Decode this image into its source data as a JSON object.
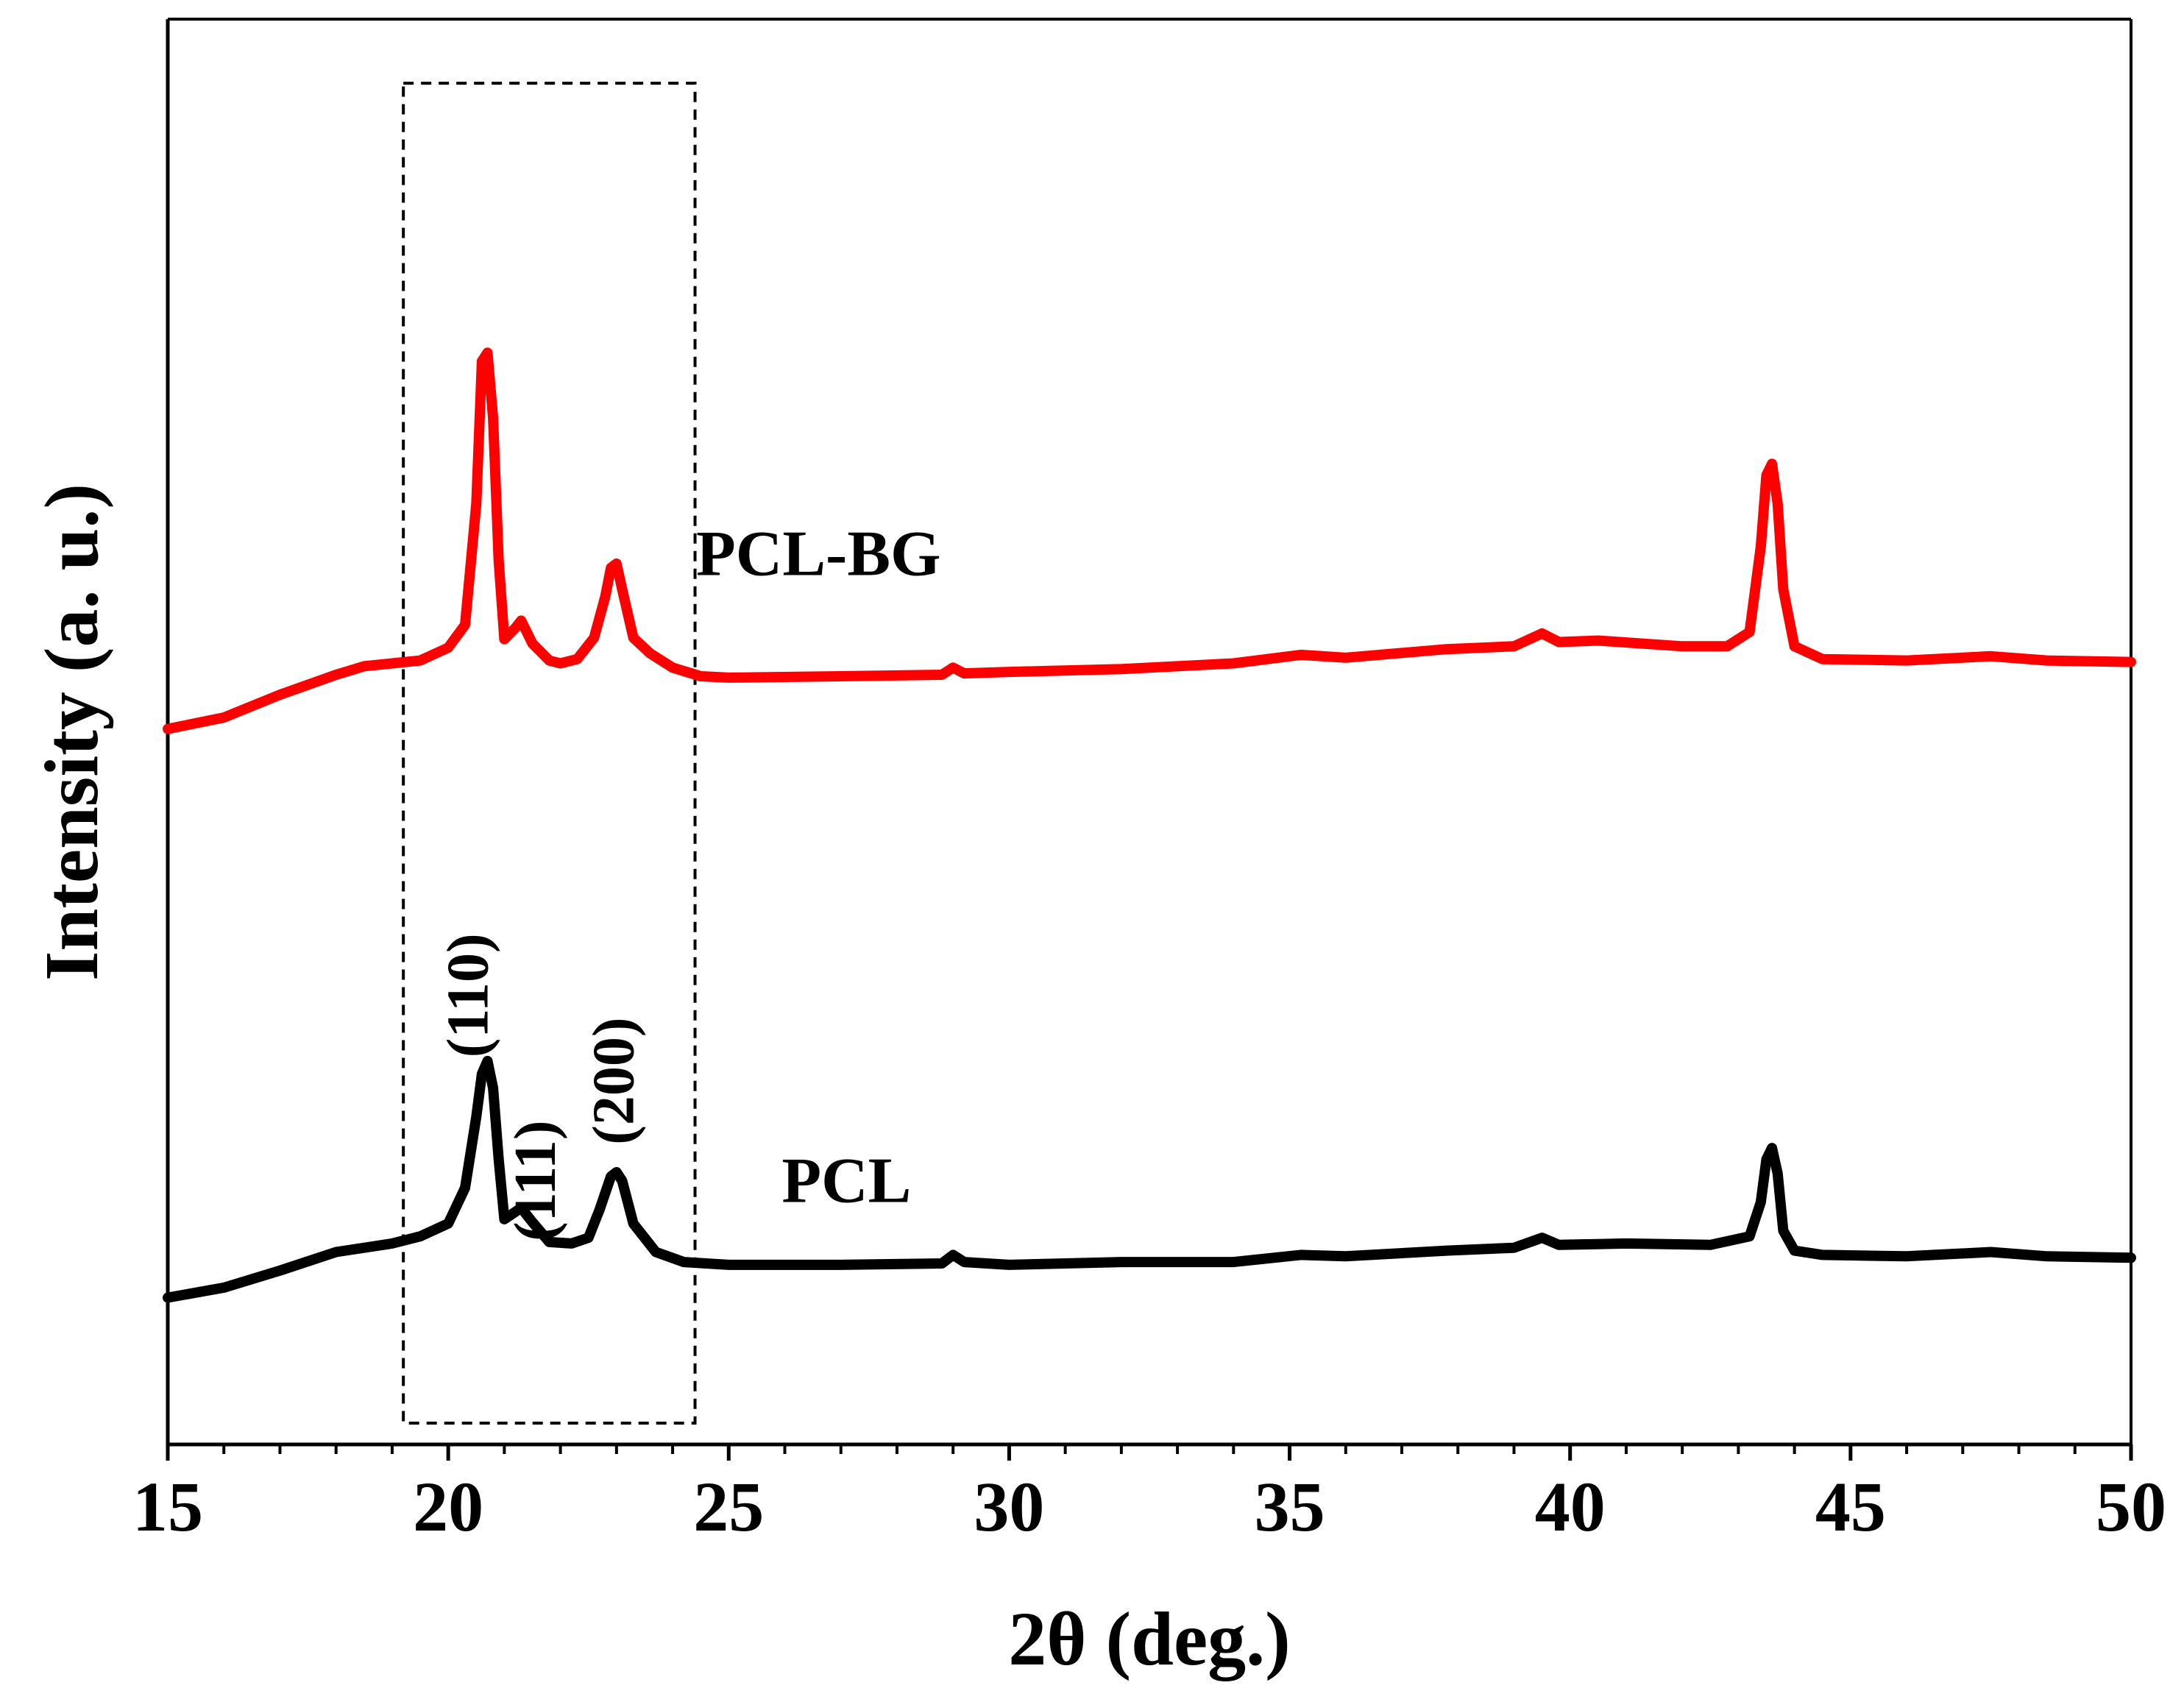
{
  "chart_data": {
    "type": "line",
    "title": "",
    "xlabel": "2θ (deg.)",
    "ylabel": "Intensity (a. u.)",
    "xlim": [
      15,
      50
    ],
    "ylim": [
      0,
      100
    ],
    "x_ticks": [
      15,
      20,
      25,
      30,
      35,
      40,
      45,
      50
    ],
    "x_tick_labels": [
      "15",
      "20",
      "25",
      "30",
      "35",
      "40",
      "45",
      "50"
    ],
    "x_minor_step": 1,
    "y_ticks_shown": false,
    "grid": false,
    "series": [
      {
        "name": "PCL-BG",
        "label": "PCL-BG",
        "color": "#ff0000",
        "points": [
          [
            15.0,
            50.2
          ],
          [
            16.0,
            51.0
          ],
          [
            17.0,
            52.6
          ],
          [
            18.0,
            54.0
          ],
          [
            18.5,
            54.6
          ],
          [
            19.0,
            54.8
          ],
          [
            19.5,
            55.0
          ],
          [
            20.0,
            55.9
          ],
          [
            20.3,
            57.5
          ],
          [
            20.5,
            66.0
          ],
          [
            20.6,
            76.0
          ],
          [
            20.7,
            76.6
          ],
          [
            20.8,
            72.0
          ],
          [
            20.9,
            62.0
          ],
          [
            21.0,
            56.5
          ],
          [
            21.2,
            57.3
          ],
          [
            21.3,
            57.8
          ],
          [
            21.5,
            56.2
          ],
          [
            21.8,
            55.0
          ],
          [
            22.0,
            54.8
          ],
          [
            22.3,
            55.1
          ],
          [
            22.6,
            56.6
          ],
          [
            22.8,
            59.5
          ],
          [
            22.9,
            61.5
          ],
          [
            23.0,
            61.8
          ],
          [
            23.1,
            60.0
          ],
          [
            23.3,
            56.6
          ],
          [
            23.6,
            55.5
          ],
          [
            24.0,
            54.5
          ],
          [
            24.5,
            53.9
          ],
          [
            25.0,
            53.8
          ],
          [
            27.0,
            53.9
          ],
          [
            28.8,
            54.0
          ],
          [
            29.0,
            54.5
          ],
          [
            29.2,
            54.1
          ],
          [
            30.0,
            54.2
          ],
          [
            32.0,
            54.4
          ],
          [
            34.0,
            54.8
          ],
          [
            35.2,
            55.4
          ],
          [
            36.0,
            55.2
          ],
          [
            37.8,
            55.8
          ],
          [
            39.0,
            56.0
          ],
          [
            39.5,
            56.9
          ],
          [
            39.8,
            56.3
          ],
          [
            40.5,
            56.4
          ],
          [
            42.0,
            56.0
          ],
          [
            42.8,
            56.0
          ],
          [
            43.2,
            57.0
          ],
          [
            43.4,
            63.0
          ],
          [
            43.5,
            68.0
          ],
          [
            43.6,
            68.8
          ],
          [
            43.7,
            66.0
          ],
          [
            43.8,
            60.0
          ],
          [
            44.0,
            56.0
          ],
          [
            44.5,
            55.1
          ],
          [
            46.0,
            55.0
          ],
          [
            47.5,
            55.3
          ],
          [
            48.5,
            55.0
          ],
          [
            50.0,
            54.9
          ]
        ]
      },
      {
        "name": "PCL",
        "label": "PCL",
        "color": "#000000",
        "points": [
          [
            15.0,
            10.3
          ],
          [
            16.0,
            11.0
          ],
          [
            17.0,
            12.2
          ],
          [
            18.0,
            13.5
          ],
          [
            19.0,
            14.1
          ],
          [
            19.5,
            14.6
          ],
          [
            20.0,
            15.5
          ],
          [
            20.3,
            18.0
          ],
          [
            20.5,
            23.0
          ],
          [
            20.6,
            26.0
          ],
          [
            20.7,
            26.9
          ],
          [
            20.8,
            25.0
          ],
          [
            20.9,
            20.0
          ],
          [
            21.0,
            15.8
          ],
          [
            21.3,
            16.6
          ],
          [
            21.5,
            15.6
          ],
          [
            21.8,
            14.2
          ],
          [
            22.2,
            14.1
          ],
          [
            22.5,
            14.5
          ],
          [
            22.7,
            16.5
          ],
          [
            22.9,
            18.8
          ],
          [
            23.0,
            19.1
          ],
          [
            23.1,
            18.5
          ],
          [
            23.3,
            15.5
          ],
          [
            23.7,
            13.5
          ],
          [
            24.2,
            12.8
          ],
          [
            25.0,
            12.6
          ],
          [
            27.0,
            12.6
          ],
          [
            28.8,
            12.7
          ],
          [
            29.0,
            13.3
          ],
          [
            29.2,
            12.8
          ],
          [
            30.0,
            12.6
          ],
          [
            32.0,
            12.8
          ],
          [
            34.0,
            12.8
          ],
          [
            35.2,
            13.3
          ],
          [
            36.0,
            13.2
          ],
          [
            37.8,
            13.6
          ],
          [
            39.0,
            13.8
          ],
          [
            39.5,
            14.5
          ],
          [
            39.8,
            14.0
          ],
          [
            41.0,
            14.1
          ],
          [
            42.5,
            14.0
          ],
          [
            43.2,
            14.6
          ],
          [
            43.4,
            17.0
          ],
          [
            43.5,
            20.0
          ],
          [
            43.6,
            20.8
          ],
          [
            43.7,
            19.0
          ],
          [
            43.8,
            15.0
          ],
          [
            44.0,
            13.6
          ],
          [
            44.5,
            13.3
          ],
          [
            46.0,
            13.2
          ],
          [
            47.5,
            13.5
          ],
          [
            48.5,
            13.2
          ],
          [
            50.0,
            13.1
          ]
        ]
      }
    ],
    "annotations": [
      {
        "text": "(110)",
        "x": 20.7,
        "y": 31.5,
        "rotation": -90
      },
      {
        "text": "(111)",
        "x": 21.9,
        "y": 18.5,
        "rotation": -90
      },
      {
        "text": "(200)",
        "x": 23.3,
        "y": 25.5,
        "rotation": -90
      }
    ],
    "series_label_positions": [
      {
        "series": "PCL-BG",
        "x": 26.6,
        "y": 61.0
      },
      {
        "series": "PCL",
        "x": 27.1,
        "y": 17.0
      }
    ],
    "highlight_box": {
      "x0": 19.2,
      "x1": 24.4,
      "y0": 1.5,
      "y1": 95.5,
      "style": "dashed"
    }
  }
}
